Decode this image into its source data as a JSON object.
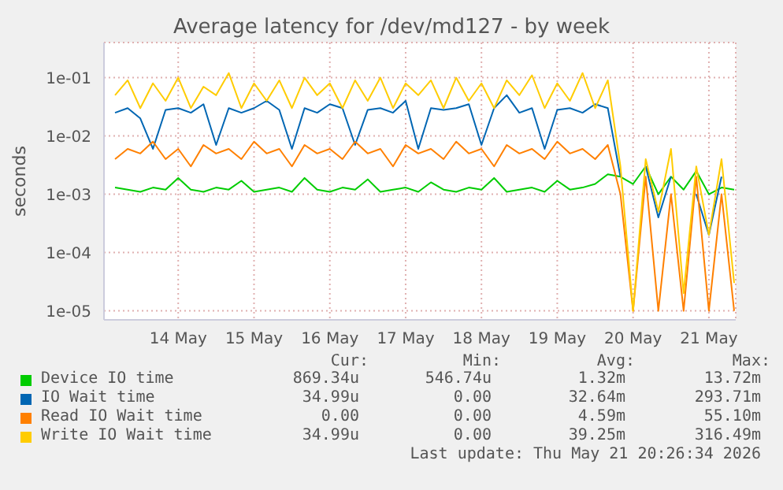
{
  "chart_data": {
    "type": "line",
    "title": "Average latency for /dev/md127 - by week",
    "ylabel": "seconds",
    "x": [
      "2026-05-13T16:00",
      "2026-05-13T20:00",
      "2026-05-14T00:00",
      "2026-05-14T04:00",
      "2026-05-14T08:00",
      "2026-05-14T12:00",
      "2026-05-14T16:00",
      "2026-05-14T20:00",
      "2026-05-15T00:00",
      "2026-05-15T04:00",
      "2026-05-15T08:00",
      "2026-05-15T12:00",
      "2026-05-15T16:00",
      "2026-05-15T20:00",
      "2026-05-16T00:00",
      "2026-05-16T04:00",
      "2026-05-16T08:00",
      "2026-05-16T12:00",
      "2026-05-16T16:00",
      "2026-05-16T20:00",
      "2026-05-17T00:00",
      "2026-05-17T04:00",
      "2026-05-17T08:00",
      "2026-05-17T12:00",
      "2026-05-17T16:00",
      "2026-05-17T20:00",
      "2026-05-18T00:00",
      "2026-05-18T04:00",
      "2026-05-18T08:00",
      "2026-05-18T12:00",
      "2026-05-18T16:00",
      "2026-05-18T20:00",
      "2026-05-19T00:00",
      "2026-05-19T04:00",
      "2026-05-19T08:00",
      "2026-05-19T12:00",
      "2026-05-19T16:00",
      "2026-05-19T20:00",
      "2026-05-20T00:00",
      "2026-05-20T04:00",
      "2026-05-20T08:00",
      "2026-05-20T12:00",
      "2026-05-20T16:00",
      "2026-05-20T20:00",
      "2026-05-21T00:00",
      "2026-05-21T04:00",
      "2026-05-21T08:00",
      "2026-05-21T12:00",
      "2026-05-21T16:00",
      "2026-05-21T20:00"
    ],
    "series": [
      {
        "name": "Device IO time",
        "color": "#00cc00",
        "values": [
          0.0013,
          0.0012,
          0.0011,
          0.0013,
          0.0012,
          0.0019,
          0.0012,
          0.0011,
          0.0013,
          0.0012,
          0.0017,
          0.0011,
          0.0012,
          0.0013,
          0.0011,
          0.0019,
          0.0012,
          0.0011,
          0.0013,
          0.0012,
          0.0018,
          0.0011,
          0.0012,
          0.0013,
          0.0011,
          0.0016,
          0.0012,
          0.0011,
          0.0013,
          0.0012,
          0.0019,
          0.0011,
          0.0012,
          0.0013,
          0.0011,
          0.0017,
          0.0012,
          0.0013,
          0.0015,
          0.0022,
          0.002,
          0.0015,
          0.003,
          0.001,
          0.002,
          0.0012,
          0.0025,
          0.001,
          0.0013,
          0.0012
        ]
      },
      {
        "name": "IO Wait time",
        "color": "#0066b3",
        "values": [
          0.025,
          0.03,
          0.02,
          0.006,
          0.028,
          0.03,
          0.025,
          0.035,
          0.007,
          0.03,
          0.025,
          0.03,
          0.04,
          0.028,
          0.006,
          0.03,
          0.025,
          0.035,
          0.03,
          0.007,
          0.028,
          0.03,
          0.025,
          0.04,
          0.006,
          0.03,
          0.028,
          0.03,
          0.035,
          0.007,
          0.03,
          0.05,
          0.025,
          0.03,
          0.006,
          0.028,
          0.03,
          0.025,
          0.035,
          0.03,
          0.002,
          null,
          0.003,
          0.0004,
          0.002,
          null,
          0.001,
          0.0002,
          0.002,
          null
        ]
      },
      {
        "name": "Read IO Wait time",
        "color": "#ff8000",
        "values": [
          0.004,
          0.006,
          0.005,
          0.008,
          0.004,
          0.006,
          0.003,
          0.007,
          0.005,
          0.006,
          0.004,
          0.008,
          0.005,
          0.006,
          0.003,
          0.007,
          0.005,
          0.006,
          0.004,
          0.008,
          0.005,
          0.006,
          0.003,
          0.007,
          0.005,
          0.006,
          0.004,
          0.008,
          0.005,
          0.006,
          0.003,
          0.007,
          0.005,
          0.006,
          0.004,
          0.008,
          0.005,
          0.006,
          0.004,
          0.007,
          0.001,
          1e-05,
          0.002,
          1e-05,
          0.001,
          1e-05,
          0.002,
          1e-05,
          0.001,
          1e-05
        ]
      },
      {
        "name": "Write IO Wait time",
        "color": "#ffcc00",
        "values": [
          0.05,
          0.09,
          0.03,
          0.08,
          0.04,
          0.1,
          0.03,
          0.07,
          0.05,
          0.12,
          0.03,
          0.08,
          0.04,
          0.09,
          0.03,
          0.1,
          0.05,
          0.08,
          0.03,
          0.09,
          0.04,
          0.1,
          0.03,
          0.08,
          0.05,
          0.09,
          0.03,
          0.1,
          0.04,
          0.08,
          0.03,
          0.09,
          0.05,
          0.11,
          0.03,
          0.08,
          0.04,
          0.12,
          0.03,
          0.09,
          0.003,
          1e-05,
          0.004,
          0.0005,
          0.006,
          2e-05,
          0.003,
          0.0002,
          0.004,
          3e-05
        ]
      }
    ],
    "xlim": [
      "2026-05-13T12:30",
      "2026-05-21T20:30"
    ],
    "xticks": [
      {
        "value": "2026-05-14T12:00",
        "label": "14 May"
      },
      {
        "value": "2026-05-15T12:00",
        "label": "15 May"
      },
      {
        "value": "2026-05-16T12:00",
        "label": "16 May"
      },
      {
        "value": "2026-05-17T12:00",
        "label": "17 May"
      },
      {
        "value": "2026-05-18T12:00",
        "label": "18 May"
      },
      {
        "value": "2026-05-19T12:00",
        "label": "19 May"
      },
      {
        "value": "2026-05-20T12:00",
        "label": "20 May"
      },
      {
        "value": "2026-05-21T12:00",
        "label": "21 May"
      }
    ],
    "log": true,
    "ylim": [
      7e-06,
      0.4
    ],
    "yticks": [
      {
        "value": 1e-05,
        "label": "1e-05"
      },
      {
        "value": 0.0001,
        "label": "1e-04"
      },
      {
        "value": 0.001,
        "label": "1e-03"
      },
      {
        "value": 0.01,
        "label": "1e-02"
      },
      {
        "value": 0.1,
        "label": "1e-01"
      }
    ],
    "grid": true,
    "legend": "bottom",
    "marker": "none",
    "line_style": "solid",
    "annotations": [
      "Cur:",
      "Min:",
      "Avg:",
      "Max:",
      "869.34u",
      "546.74u",
      "1.32m",
      "13.72m",
      "34.99u",
      "0.00",
      "32.64m",
      "293.71m",
      "0.00",
      "0.00",
      "4.59m",
      "55.10m",
      "34.99u",
      "0.00",
      "39.25m",
      "316.49m",
      "Last update: Thu May 21 20:26:34 2026"
    ]
  }
}
